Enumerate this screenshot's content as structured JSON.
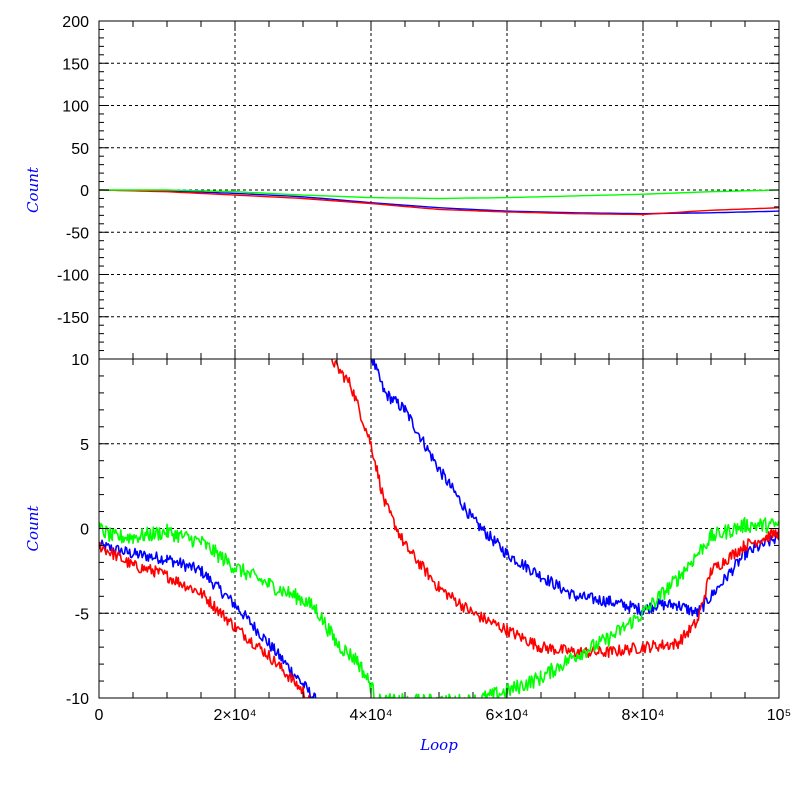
{
  "chart_data": [
    {
      "type": "line",
      "title": "",
      "xlabel": "",
      "ylabel": "Count",
      "xlim": [
        0,
        100000
      ],
      "ylim": [
        -200,
        200
      ],
      "yticks": [
        {
          "v": 200,
          "label": "200"
        },
        {
          "v": 150,
          "label": "150"
        },
        {
          "v": 100,
          "label": "100"
        },
        {
          "v": 50,
          "label": "50"
        },
        {
          "v": 0,
          "label": "0"
        },
        {
          "v": -50,
          "label": "-50"
        },
        {
          "v": -100,
          "label": "-100"
        },
        {
          "v": -150,
          "label": "-150"
        }
      ],
      "grid": true,
      "series": [
        {
          "color": "#0000ff",
          "x": [
            0,
            10000,
            20000,
            30000,
            40000,
            50000,
            60000,
            70000,
            80000,
            90000,
            100000
          ],
          "y": [
            0,
            -1,
            -4,
            -8,
            -15,
            -21,
            -25,
            -27,
            -28,
            -27,
            -25
          ]
        },
        {
          "color": "#ff0000",
          "x": [
            0,
            10000,
            20000,
            30000,
            40000,
            50000,
            60000,
            70000,
            80000,
            90000,
            100000
          ],
          "y": [
            0,
            -2,
            -6,
            -10,
            -16,
            -23,
            -26,
            -28,
            -29,
            -24,
            -21
          ]
        },
        {
          "color": "#00ff00",
          "x": [
            0,
            10000,
            20000,
            30000,
            40000,
            50000,
            60000,
            70000,
            80000,
            90000,
            100000
          ],
          "y": [
            0,
            0,
            -2,
            -6,
            -9,
            -10,
            -9,
            -7,
            -5,
            -2,
            0
          ]
        }
      ]
    },
    {
      "type": "line",
      "title": "",
      "xlabel": "Loop",
      "ylabel": "Count",
      "xlim": [
        0,
        100000
      ],
      "ylim": [
        -10,
        10
      ],
      "xticks": [
        {
          "v": 0,
          "label": "0"
        },
        {
          "v": 20000,
          "label": "2×10⁴"
        },
        {
          "v": 40000,
          "label": "4×10⁴"
        },
        {
          "v": 60000,
          "label": "6×10⁴"
        },
        {
          "v": 80000,
          "label": "8×10⁴"
        },
        {
          "v": 100000,
          "label": "10⁵"
        }
      ],
      "yticks": [
        {
          "v": 10,
          "label": "10"
        },
        {
          "v": 5,
          "label": "5"
        },
        {
          "v": 0,
          "label": "0"
        },
        {
          "v": -5,
          "label": "-5"
        },
        {
          "v": -10,
          "label": "-10"
        }
      ],
      "grid": true,
      "series": [
        {
          "color": "#0000ff",
          "noise": 0.35,
          "x": [
            0,
            5000,
            10000,
            15000,
            20000,
            25000,
            30000,
            32000,
            40000,
            42000,
            45000,
            50000,
            55000,
            60000,
            65000,
            70000,
            75000,
            80000,
            82000,
            85000,
            88000,
            90000,
            95000,
            100000
          ],
          "y": [
            -1.0,
            -1.5,
            -1.8,
            -2.5,
            -4.5,
            -6.8,
            -9.2,
            -10.2,
            10.2,
            8.0,
            7.0,
            3.5,
            0.5,
            -1.5,
            -2.8,
            -4.0,
            -4.3,
            -4.8,
            -4.5,
            -4.5,
            -5.0,
            -4.0,
            -1.5,
            -0.5
          ]
        },
        {
          "color": "#ff0000",
          "noise": 0.35,
          "x": [
            0,
            5000,
            8000,
            10000,
            15000,
            20000,
            25000,
            30000,
            31000,
            34000,
            35000,
            37000,
            40000,
            42000,
            45000,
            50000,
            55000,
            60000,
            65000,
            70000,
            75000,
            80000,
            85000,
            88000,
            90000,
            95000,
            100000
          ],
          "y": [
            -1.0,
            -2.2,
            -2.5,
            -2.8,
            -3.8,
            -5.8,
            -7.5,
            -9.6,
            -10.2,
            10.2,
            9.5,
            8.5,
            5.0,
            1.5,
            -1.0,
            -3.5,
            -5.0,
            -6.0,
            -7.0,
            -7.3,
            -7.3,
            -7.0,
            -6.8,
            -5.5,
            -2.5,
            -1.0,
            -0.2
          ]
        },
        {
          "color": "#00ff00",
          "noise": 0.45,
          "x": [
            0,
            2000,
            5000,
            10000,
            15000,
            20000,
            25000,
            30000,
            32000,
            35000,
            38000,
            40000,
            41000,
            55000,
            60000,
            65000,
            70000,
            75000,
            80000,
            85000,
            90000,
            95000,
            100000
          ],
          "y": [
            0.0,
            -0.5,
            -0.5,
            -0.2,
            -0.8,
            -2.3,
            -3.3,
            -4.2,
            -4.8,
            -6.8,
            -7.8,
            -9.3,
            -10.2,
            -10.2,
            -9.6,
            -8.8,
            -7.5,
            -6.5,
            -5.0,
            -3.0,
            -0.5,
            0.2,
            0.2
          ]
        }
      ]
    }
  ]
}
